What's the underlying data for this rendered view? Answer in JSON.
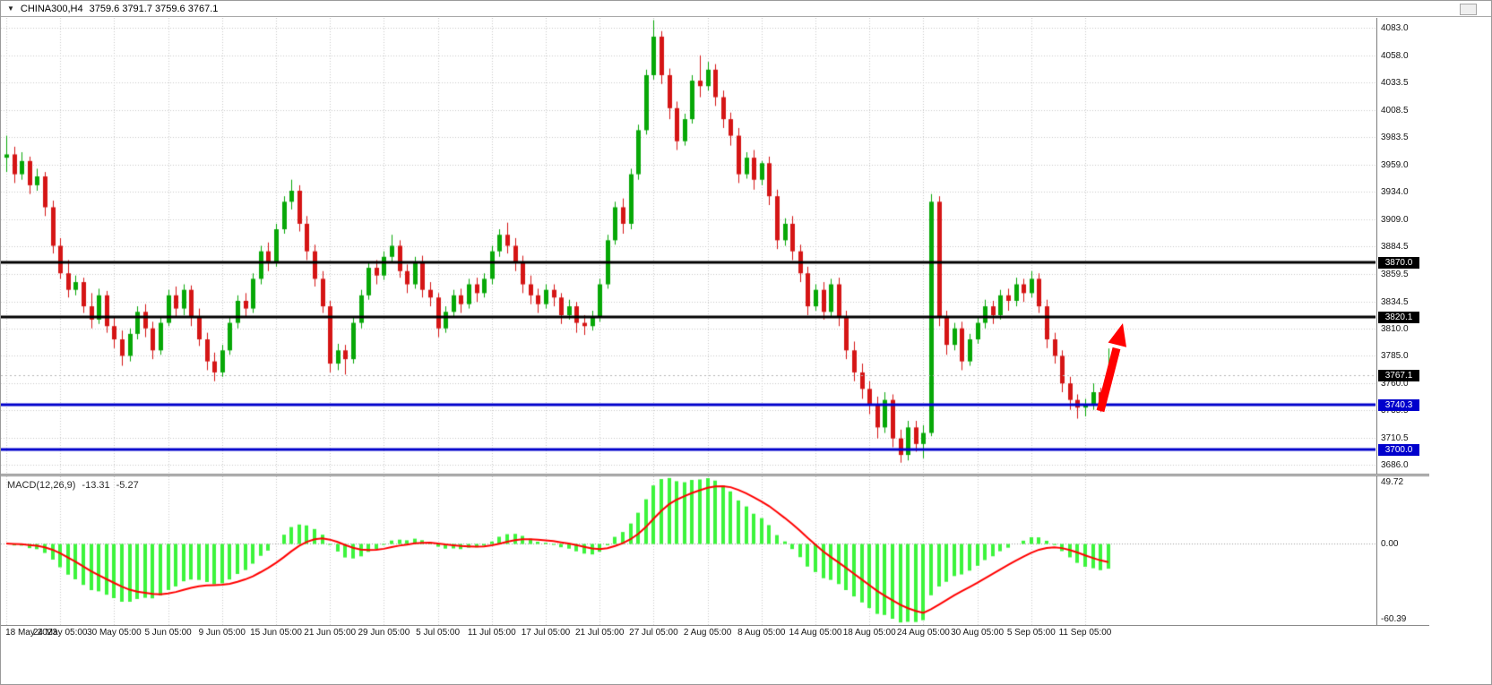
{
  "window": {
    "symbol_period": "CHINA300,H4",
    "ohlc": "3759.6 3791.7 3759.6 3767.1"
  },
  "chart_data": {
    "type": "candlestick",
    "symbol": "CHINA300",
    "timeframe": "H4",
    "grid": true,
    "x_axis_labels": [
      "18 May 2023",
      "24 May 05:00",
      "30 May 05:00",
      "5 Jun 05:00",
      "9 Jun 05:00",
      "15 Jun 05:00",
      "21 Jun 05:00",
      "29 Jun 05:00",
      "5 Jul 05:00",
      "11 Jul 05:00",
      "17 Jul 05:00",
      "21 Jul 05:00",
      "27 Jul 05:00",
      "2 Aug 05:00",
      "8 Aug 05:00",
      "14 Aug 05:00",
      "18 Aug 05:00",
      "24 Aug 05:00",
      "30 Aug 05:00",
      "5 Sep 05:00",
      "11 Sep 05:00"
    ],
    "bars_per_x_label": 7,
    "price_axis_ticks": [
      4083.0,
      4058.0,
      4033.5,
      4008.5,
      3983.5,
      3959.0,
      3934.0,
      3909.0,
      3884.5,
      3859.5,
      3834.5,
      3810.0,
      3785.0,
      3760.0,
      3735.5,
      3710.5,
      3686.0
    ],
    "price_axis_range": [
      3678,
      4092
    ],
    "candle_colors": {
      "up": "#07a807",
      "down": "#d51515"
    },
    "candles": [
      [
        3965,
        3985,
        3952,
        3968
      ],
      [
        3968,
        3975,
        3942,
        3950
      ],
      [
        3950,
        3970,
        3945,
        3962
      ],
      [
        3962,
        3966,
        3932,
        3940
      ],
      [
        3940,
        3955,
        3935,
        3948
      ],
      [
        3948,
        3952,
        3912,
        3920
      ],
      [
        3920,
        3926,
        3878,
        3885
      ],
      [
        3885,
        3892,
        3855,
        3860
      ],
      [
        3860,
        3872,
        3838,
        3845
      ],
      [
        3845,
        3858,
        3840,
        3852
      ],
      [
        3852,
        3856,
        3824,
        3830
      ],
      [
        3830,
        3842,
        3810,
        3818
      ],
      [
        3818,
        3846,
        3814,
        3840
      ],
      [
        3840,
        3844,
        3806,
        3812
      ],
      [
        3812,
        3820,
        3792,
        3800
      ],
      [
        3800,
        3808,
        3776,
        3785
      ],
      [
        3785,
        3810,
        3780,
        3805
      ],
      [
        3805,
        3830,
        3800,
        3825
      ],
      [
        3825,
        3832,
        3802,
        3810
      ],
      [
        3810,
        3816,
        3782,
        3790
      ],
      [
        3790,
        3820,
        3786,
        3815
      ],
      [
        3815,
        3845,
        3812,
        3840
      ],
      [
        3840,
        3848,
        3820,
        3828
      ],
      [
        3828,
        3850,
        3822,
        3845
      ],
      [
        3845,
        3849,
        3812,
        3820
      ],
      [
        3820,
        3828,
        3794,
        3800
      ],
      [
        3800,
        3806,
        3772,
        3780
      ],
      [
        3780,
        3788,
        3762,
        3770
      ],
      [
        3770,
        3795,
        3766,
        3790
      ],
      [
        3790,
        3820,
        3786,
        3815
      ],
      [
        3815,
        3840,
        3810,
        3835
      ],
      [
        3835,
        3842,
        3820,
        3828
      ],
      [
        3828,
        3860,
        3824,
        3855
      ],
      [
        3855,
        3885,
        3850,
        3880
      ],
      [
        3880,
        3888,
        3862,
        3870
      ],
      [
        3870,
        3905,
        3866,
        3900
      ],
      [
        3900,
        3930,
        3896,
        3925
      ],
      [
        3925,
        3945,
        3918,
        3935
      ],
      [
        3935,
        3940,
        3898,
        3905
      ],
      [
        3905,
        3912,
        3872,
        3880
      ],
      [
        3880,
        3886,
        3848,
        3855
      ],
      [
        3855,
        3862,
        3824,
        3830
      ],
      [
        3830,
        3835,
        3770,
        3778
      ],
      [
        3778,
        3796,
        3772,
        3790
      ],
      [
        3790,
        3795,
        3768,
        3782
      ],
      [
        3782,
        3820,
        3778,
        3815
      ],
      [
        3815,
        3845,
        3810,
        3840
      ],
      [
        3840,
        3870,
        3836,
        3865
      ],
      [
        3865,
        3872,
        3850,
        3858
      ],
      [
        3858,
        3880,
        3854,
        3875
      ],
      [
        3875,
        3895,
        3870,
        3885
      ],
      [
        3885,
        3890,
        3856,
        3862
      ],
      [
        3862,
        3868,
        3842,
        3850
      ],
      [
        3850,
        3875,
        3846,
        3870
      ],
      [
        3870,
        3876,
        3838,
        3845
      ],
      [
        3845,
        3852,
        3830,
        3838
      ],
      [
        3838,
        3842,
        3802,
        3810
      ],
      [
        3810,
        3830,
        3806,
        3825
      ],
      [
        3825,
        3845,
        3820,
        3840
      ],
      [
        3840,
        3846,
        3824,
        3832
      ],
      [
        3832,
        3855,
        3828,
        3850
      ],
      [
        3850,
        3856,
        3834,
        3842
      ],
      [
        3842,
        3860,
        3838,
        3855
      ],
      [
        3855,
        3885,
        3850,
        3880
      ],
      [
        3880,
        3900,
        3875,
        3895
      ],
      [
        3895,
        3906,
        3878,
        3885
      ],
      [
        3885,
        3892,
        3862,
        3870
      ],
      [
        3870,
        3876,
        3842,
        3850
      ],
      [
        3850,
        3858,
        3832,
        3840
      ],
      [
        3840,
        3846,
        3824,
        3832
      ],
      [
        3832,
        3850,
        3828,
        3845
      ],
      [
        3845,
        3850,
        3830,
        3838
      ],
      [
        3838,
        3842,
        3814,
        3822
      ],
      [
        3822,
        3836,
        3818,
        3830
      ],
      [
        3830,
        3834,
        3806,
        3815
      ],
      [
        3815,
        3822,
        3804,
        3812
      ],
      [
        3812,
        3826,
        3808,
        3820
      ],
      [
        3820,
        3855,
        3816,
        3850
      ],
      [
        3850,
        3895,
        3846,
        3890
      ],
      [
        3890,
        3925,
        3886,
        3920
      ],
      [
        3920,
        3928,
        3896,
        3905
      ],
      [
        3905,
        3955,
        3900,
        3950
      ],
      [
        3950,
        3995,
        3945,
        3990
      ],
      [
        3990,
        4045,
        3986,
        4040
      ],
      [
        4040,
        4090,
        4036,
        4075
      ],
      [
        4075,
        4080,
        4032,
        4040
      ],
      [
        4040,
        4046,
        4000,
        4010
      ],
      [
        4010,
        4016,
        3972,
        3980
      ],
      [
        3980,
        4005,
        3976,
        4000
      ],
      [
        4000,
        4040,
        3996,
        4035
      ],
      [
        4035,
        4058,
        4020,
        4030
      ],
      [
        4030,
        4052,
        4026,
        4045
      ],
      [
        4045,
        4050,
        4012,
        4020
      ],
      [
        4020,
        4026,
        3992,
        4000
      ],
      [
        4000,
        4006,
        3976,
        3985
      ],
      [
        3985,
        3992,
        3942,
        3950
      ],
      [
        3950,
        3970,
        3946,
        3965
      ],
      [
        3965,
        3972,
        3936,
        3945
      ],
      [
        3945,
        3962,
        3940,
        3960
      ],
      [
        3960,
        3966,
        3922,
        3930
      ],
      [
        3930,
        3936,
        3882,
        3890
      ],
      [
        3890,
        3910,
        3885,
        3905
      ],
      [
        3905,
        3912,
        3872,
        3880
      ],
      [
        3880,
        3886,
        3852,
        3860
      ],
      [
        3860,
        3866,
        3822,
        3830
      ],
      [
        3830,
        3850,
        3826,
        3845
      ],
      [
        3845,
        3852,
        3818,
        3825
      ],
      [
        3825,
        3855,
        3820,
        3850
      ],
      [
        3850,
        3856,
        3812,
        3820
      ],
      [
        3820,
        3826,
        3782,
        3790
      ],
      [
        3790,
        3798,
        3762,
        3770
      ],
      [
        3770,
        3778,
        3746,
        3755
      ],
      [
        3755,
        3762,
        3732,
        3740
      ],
      [
        3740,
        3748,
        3710,
        3720
      ],
      [
        3720,
        3752,
        3715,
        3745
      ],
      [
        3745,
        3750,
        3702,
        3710
      ],
      [
        3710,
        3718,
        3688,
        3695
      ],
      [
        3695,
        3726,
        3690,
        3720
      ],
      [
        3720,
        3726,
        3698,
        3705
      ],
      [
        3705,
        3722,
        3692,
        3715
      ],
      [
        3715,
        3932,
        3712,
        3925
      ],
      [
        3925,
        3930,
        3812,
        3820
      ],
      [
        3820,
        3826,
        3786,
        3795
      ],
      [
        3795,
        3815,
        3790,
        3810
      ],
      [
        3810,
        3816,
        3772,
        3780
      ],
      [
        3780,
        3805,
        3776,
        3800
      ],
      [
        3800,
        3820,
        3796,
        3815
      ],
      [
        3815,
        3836,
        3810,
        3830
      ],
      [
        3830,
        3835,
        3814,
        3822
      ],
      [
        3822,
        3845,
        3818,
        3840
      ],
      [
        3840,
        3846,
        3826,
        3835
      ],
      [
        3835,
        3856,
        3830,
        3850
      ],
      [
        3850,
        3855,
        3834,
        3842
      ],
      [
        3842,
        3862,
        3838,
        3855
      ],
      [
        3855,
        3860,
        3824,
        3830
      ],
      [
        3830,
        3836,
        3792,
        3800
      ],
      [
        3800,
        3806,
        3778,
        3785
      ],
      [
        3785,
        3790,
        3752,
        3760
      ],
      [
        3760,
        3766,
        3736,
        3745
      ],
      [
        3745,
        3750,
        3728,
        3738
      ],
      [
        3738,
        3746,
        3730,
        3740
      ],
      [
        3740,
        3760,
        3736,
        3752
      ],
      [
        3752,
        3756,
        3734,
        3742
      ],
      [
        3759.6,
        3791.7,
        3759.6,
        3767.1
      ]
    ],
    "levels": [
      {
        "value": 3870.0,
        "label": "3870.0",
        "color": "#000000"
      },
      {
        "value": 3820.1,
        "label": "3820.1",
        "color": "#000000"
      },
      {
        "value": 3740.3,
        "label": "3740.3",
        "color": "#0000cc"
      },
      {
        "value": 3700.0,
        "label": "3700.0",
        "color": "#0000cc"
      }
    ],
    "current_price": {
      "value": 3767.1,
      "label": "3767.1",
      "badge_color": "#000000"
    },
    "annotations": [
      {
        "type": "up-arrow",
        "color": "#ff0000",
        "from_price": 3740,
        "to_price": 3815
      }
    ],
    "macd": {
      "label": "MACD(12,26,9)",
      "main_value": "-13.31",
      "signal_value": "-5.27",
      "params": [
        12,
        26,
        9
      ],
      "range": [
        -60.39,
        49.72
      ],
      "y_ticks": [
        "49.72",
        "0.00",
        "-60.39"
      ],
      "y_tick_values": [
        49.72,
        0,
        -60.39
      ],
      "histogram_color": "#3cf43c",
      "signal_color": "#ff0000"
    }
  }
}
